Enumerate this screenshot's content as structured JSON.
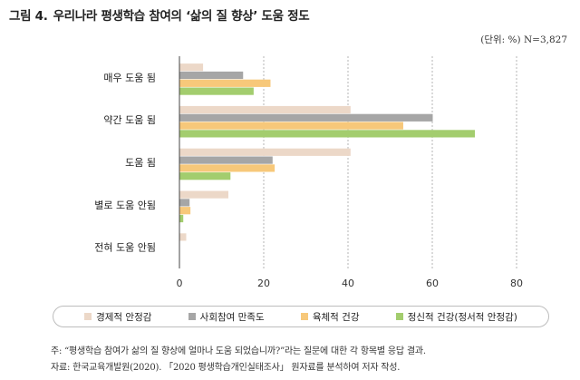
{
  "figure": {
    "number": "그림 4.",
    "title": "우리나라 평생학습 참여의 ‘삶의 질 향상’ 도움 정도",
    "unit": "(단위: %) N=3,827"
  },
  "chart_data": {
    "type": "bar",
    "orientation": "horizontal",
    "categories": [
      "매우 도움 됨",
      "약간 도움 됨",
      "도움 됨",
      "별로 도움 안됨",
      "전혀 도움 안됨"
    ],
    "series": [
      {
        "name": "경제적 안정감",
        "color": "#ecd8c8",
        "values": [
          5.5,
          40.5,
          40.5,
          11.5,
          1.5
        ]
      },
      {
        "name": "사회참여 만족도",
        "color": "#a6a6a6",
        "values": [
          15,
          60,
          22,
          2.3,
          0
        ]
      },
      {
        "name": "육체적 건강",
        "color": "#f7c87a",
        "values": [
          21.5,
          53,
          22.5,
          2.5,
          0
        ]
      },
      {
        "name": "정신적 건강(정서적 안정감)",
        "color": "#a3cd6e",
        "values": [
          17.5,
          70,
          12,
          0.8,
          0
        ]
      }
    ],
    "xlim": [
      0,
      80
    ],
    "xticks": [
      "0",
      "20",
      "40",
      "60",
      "80"
    ],
    "grid": "vertical dashed",
    "legend_position": "bottom"
  },
  "notes": {
    "note": "주: “평생학습 참여가 삶의 질 향상에 얼마나 도움 되었습니까?”라는 질문에 대한 각 항목별 응답 결과.",
    "source": "자료: 한국교육개발원(2020). 「2020 평생학습개인실태조사」 원자료를 분석하여 저자 작성."
  }
}
